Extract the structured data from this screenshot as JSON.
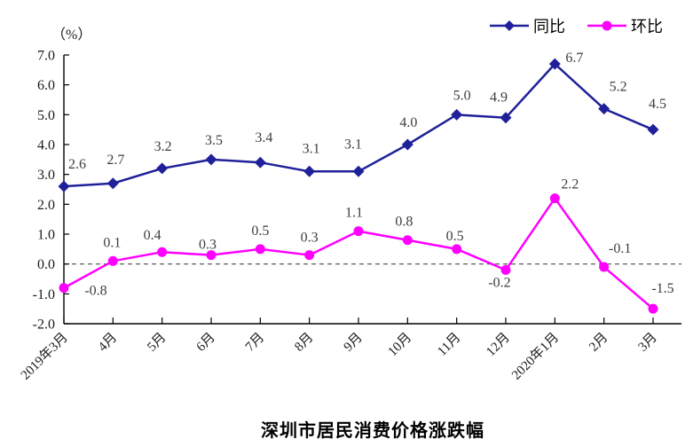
{
  "chart_data": {
    "type": "line",
    "title": "深圳市居民消费价格涨跌幅",
    "ylabel": "（%）",
    "xlabel": "",
    "categories": [
      "2019年3月",
      "4月",
      "5月",
      "6月",
      "7月",
      "8月",
      "9月",
      "10月",
      "11月",
      "12月",
      "2020年1月",
      "2月",
      "3月"
    ],
    "series": [
      {
        "name": "同比",
        "marker": "diamond",
        "color": "#20209a",
        "values": [
          2.6,
          2.7,
          3.2,
          3.5,
          3.4,
          3.1,
          3.1,
          4.0,
          5.0,
          4.9,
          6.7,
          5.2,
          4.5
        ]
      },
      {
        "name": "环比",
        "marker": "circle",
        "color": "#ff00ff",
        "values": [
          -0.8,
          0.1,
          0.4,
          0.3,
          0.5,
          0.3,
          1.1,
          0.8,
          0.5,
          -0.2,
          2.2,
          -0.1,
          -1.5
        ]
      }
    ],
    "ylim": [
      -2.0,
      7.0
    ],
    "ytick_step": 1.0,
    "ytick_labels": [
      "7.0",
      "6.0",
      "5.0",
      "4.0",
      "3.0",
      "2.0",
      "1.0",
      "0.0",
      "-1.0",
      "-2.0"
    ],
    "zero_line": "dashed",
    "grid": false,
    "data_labels": true,
    "legend_position": "top-right",
    "text_color": "#1a1a1a",
    "label_color": "#3d3d3d",
    "axis_color": "#000000",
    "zero_line_color": "#4a4a4a"
  }
}
